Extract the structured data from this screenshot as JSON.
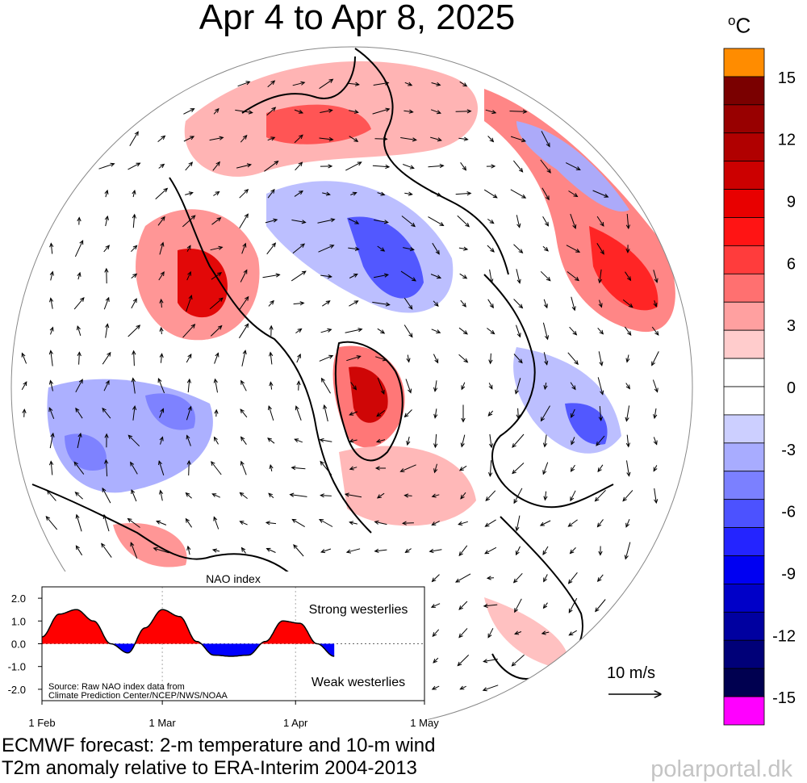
{
  "title": "Apr 4 to Apr 8, 2025",
  "colorbar": {
    "unit_prefix": "o",
    "unit_suffix": "C",
    "tick_labels": [
      "15",
      "12",
      "9",
      "6",
      "3",
      "0",
      "-3",
      "-6",
      "-9",
      "-12",
      "-15"
    ],
    "tick_values": [
      15,
      12,
      9,
      6,
      3,
      0,
      -3,
      -6,
      -9,
      -12,
      -15
    ],
    "colors": [
      "#ff8c00",
      "#7a0000",
      "#980000",
      "#b00000",
      "#cc0000",
      "#e80000",
      "#ff1414",
      "#ff3c3c",
      "#ff7070",
      "#ffa0a0",
      "#ffcccc",
      "#ffffff",
      "#ffffff",
      "#cccfff",
      "#a8acff",
      "#7b80ff",
      "#4c52ff",
      "#2424ff",
      "#0000f2",
      "#0000c8",
      "#0000a0",
      "#000078",
      "#000050",
      "#ff00ff"
    ]
  },
  "chart_data": [
    {
      "type": "heatmap",
      "title": "Apr 4 to Apr 8, 2025",
      "description_variable": "2-m temperature anomaly",
      "colorbar_range": [
        -15,
        15
      ],
      "colorbar_step": 1.5,
      "wind_scale_label": "10 m/s"
    },
    {
      "type": "area",
      "title": "NAO index",
      "x_ticks": [
        "1 Feb",
        "1 Mar",
        "1 Apr",
        "1 May"
      ],
      "y_ticks": [
        "2.0",
        "1.0",
        "0.0",
        "-1.0",
        "-2.0"
      ],
      "ylim": [
        -2.5,
        2.5
      ],
      "annotations": {
        "top": "Strong westerlies",
        "bottom": "Weak westerlies",
        "source_line1": "Source: Raw NAO index data from",
        "source_line2": "Climate Prediction Center/NCEP/NWS/NOAA"
      },
      "series": [
        {
          "x_day": [
            0,
            4,
            8,
            12,
            16,
            20,
            24,
            28,
            32,
            36,
            40,
            44,
            48,
            52,
            56,
            60,
            64,
            68
          ],
          "values": [
            0.3,
            1.3,
            1.5,
            1.0,
            0.0,
            -0.4,
            0.7,
            1.5,
            1.2,
            0.1,
            -0.5,
            -0.55,
            -0.5,
            0.1,
            1.0,
            0.9,
            0.0,
            -0.55
          ]
        }
      ]
    }
  ],
  "captions": {
    "line1": "ECMWF forecast: 2-m temperature and 10-m wind",
    "line2": "T2m anomaly relative to ERA-Interim 2004-2013"
  },
  "credit": "polarportal.dk"
}
